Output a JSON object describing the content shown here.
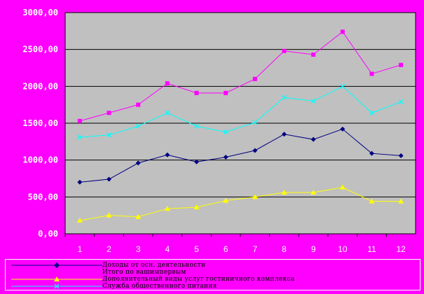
{
  "chart_data": {
    "type": "line",
    "title": "",
    "xlabel": "",
    "ylabel": "",
    "categories": [
      "1",
      "2",
      "3",
      "4",
      "5",
      "6",
      "7",
      "8",
      "9",
      "10",
      "11",
      "12"
    ],
    "y_ticks": [
      "0,00",
      "500,00",
      "1000,00",
      "1500,00",
      "2000,00",
      "2500,00",
      "3000,00"
    ],
    "ylim": [
      0,
      3000
    ],
    "grid": true,
    "legend_position": "bottom",
    "plot_background": "#c0c0c0",
    "page_background": "#ff00ff",
    "series": [
      {
        "name": "Доходы от осн. деятельности",
        "color": "#000080",
        "marker": "diamond",
        "values": [
          700,
          740,
          960,
          1070,
          975,
          1040,
          1130,
          1350,
          1280,
          1420,
          1090,
          1060
        ]
      },
      {
        "name": "Итого по вашимпервым",
        "color": "#ff00ff",
        "marker": "square",
        "values": [
          1530,
          1640,
          1750,
          2040,
          1910,
          1910,
          2100,
          2480,
          2430,
          2740,
          2170,
          2290
        ]
      },
      {
        "name": "Дополнительный виды услуг гостиничного комплекса",
        "color": "#ffff00",
        "marker": "triangle",
        "values": [
          180,
          250,
          230,
          340,
          360,
          450,
          500,
          560,
          560,
          630,
          440,
          440
        ]
      },
      {
        "name": "Служба общественного питания",
        "color": "#00ffff",
        "marker": "x",
        "values": [
          1310,
          1340,
          1460,
          1640,
          1460,
          1380,
          1510,
          1850,
          1800,
          2000,
          1640,
          1790
        ]
      }
    ]
  }
}
